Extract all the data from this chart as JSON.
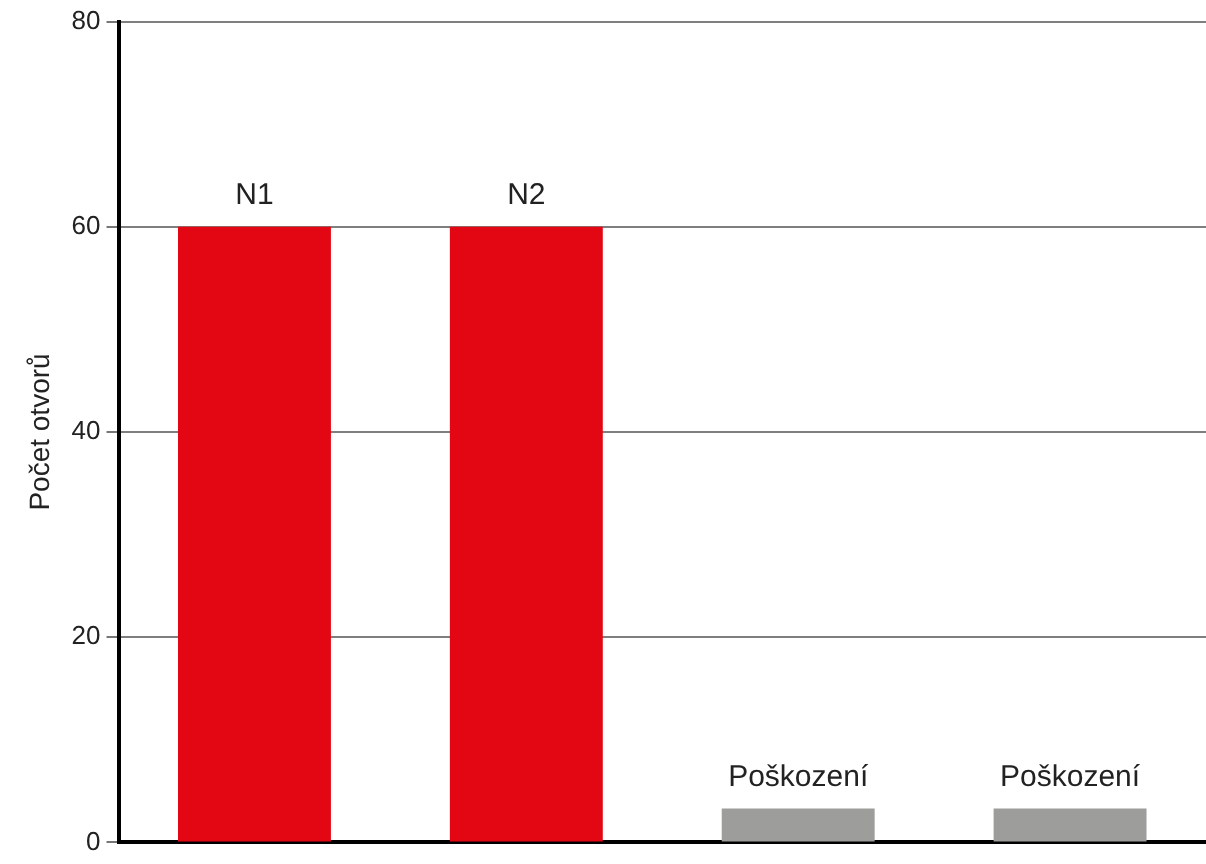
{
  "chart_data": {
    "type": "bar",
    "ylabel": "Počet otvorů",
    "categories": [
      "N1",
      "N2",
      "Poškození",
      "Poškození"
    ],
    "values": [
      60,
      60,
      3.3,
      3.3
    ],
    "colors": [
      "#e30613",
      "#e30613",
      "#9d9d9c",
      "#9d9d9c"
    ],
    "ylim": [
      0,
      80
    ],
    "yticks": [
      0,
      20,
      40,
      60,
      80
    ],
    "grid": "y",
    "legend": false
  }
}
